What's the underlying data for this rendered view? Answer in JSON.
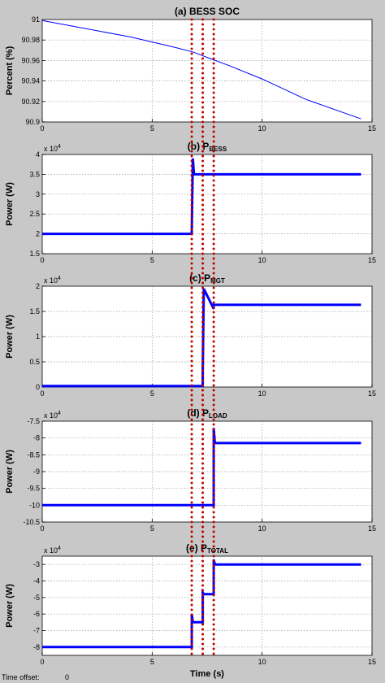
{
  "footer": {
    "time_offset_label": "Time offset:",
    "time_offset_value": "0"
  },
  "chart_data": [
    {
      "type": "line",
      "title_prefix": "(a) BESS SOC",
      "title_sub": "",
      "ylabel": "Percent (%)",
      "xlabel": "",
      "xlim": [
        0,
        15
      ],
      "ylim": [
        90.9,
        91.0
      ],
      "xticks": [
        "0",
        "5",
        "10",
        "15"
      ],
      "yticks": [
        {
          "v": 90.9,
          "t": "90.9"
        },
        {
          "v": 90.92,
          "t": "90.92"
        },
        {
          "v": 90.94,
          "t": "90.94"
        },
        {
          "v": 90.96,
          "t": "90.96"
        },
        {
          "v": 90.98,
          "t": "90.98"
        },
        {
          "v": 91.0,
          "t": "91"
        }
      ],
      "exponent": "",
      "grid": true,
      "series": [
        {
          "x": [
            0,
            2,
            4,
            6,
            6.9,
            7.5,
            8.5,
            10,
            12,
            14.5
          ],
          "y": [
            90.999,
            90.991,
            90.983,
            90.973,
            90.968,
            90.963,
            90.955,
            90.942,
            90.922,
            90.903
          ],
          "width": 1
        }
      ]
    },
    {
      "type": "line",
      "title_prefix": "(b) P",
      "title_sub": "BESS",
      "ylabel": "Power (W)",
      "xlabel": "",
      "xlim": [
        0,
        15
      ],
      "ylim": [
        1.5,
        4.0
      ],
      "xticks": [
        "0",
        "5",
        "10",
        "15"
      ],
      "yticks": [
        {
          "v": 1.5,
          "t": "1.5"
        },
        {
          "v": 2.0,
          "t": "2"
        },
        {
          "v": 2.5,
          "t": "2.5"
        },
        {
          "v": 3.0,
          "t": "3"
        },
        {
          "v": 3.5,
          "t": "3.5"
        },
        {
          "v": 4.0,
          "t": "4"
        }
      ],
      "exponent": "4",
      "grid": true,
      "series": [
        {
          "x": [
            0,
            6.8,
            6.8,
            6.85,
            6.9,
            14.5
          ],
          "y": [
            2.0,
            2.0,
            2.05,
            3.9,
            3.5,
            3.5
          ],
          "width": 3
        }
      ]
    },
    {
      "type": "line",
      "title_prefix": "(c) P",
      "title_sub": "MGT",
      "ylabel": "Power (W)",
      "xlabel": "",
      "xlim": [
        0,
        15
      ],
      "ylim": [
        0,
        2.0
      ],
      "xticks": [
        "0",
        "5",
        "10",
        "15"
      ],
      "yticks": [
        {
          "v": 0,
          "t": "0"
        },
        {
          "v": 0.5,
          "t": "0.5"
        },
        {
          "v": 1.0,
          "t": "1"
        },
        {
          "v": 1.5,
          "t": "1.5"
        },
        {
          "v": 2.0,
          "t": "2"
        }
      ],
      "exponent": "4",
      "grid": true,
      "series": [
        {
          "x": [
            0,
            7.3,
            7.3,
            7.35,
            7.8,
            7.8,
            14.5
          ],
          "y": [
            0.02,
            0.02,
            0.3,
            1.95,
            1.55,
            1.63,
            1.63
          ],
          "width": 3
        }
      ]
    },
    {
      "type": "line",
      "title_prefix": "(d) P",
      "title_sub": "LOAD",
      "ylabel": "Power (W)",
      "xlabel": "",
      "xlim": [
        0,
        15
      ],
      "ylim": [
        -10.5,
        -7.5
      ],
      "xticks": [
        "0",
        "5",
        "10",
        "15"
      ],
      "yticks": [
        {
          "v": -10.5,
          "t": "-10.5"
        },
        {
          "v": -10.0,
          "t": "-10"
        },
        {
          "v": -9.5,
          "t": "-9.5"
        },
        {
          "v": -9.0,
          "t": "-9"
        },
        {
          "v": -8.5,
          "t": "-8.5"
        },
        {
          "v": -8.0,
          "t": "-8"
        },
        {
          "v": -7.5,
          "t": "-7.5"
        }
      ],
      "exponent": "4",
      "grid": true,
      "series": [
        {
          "x": [
            0,
            7.8,
            7.8,
            7.85,
            14.5
          ],
          "y": [
            -10.0,
            -10.0,
            -7.7,
            -8.15,
            -8.15
          ],
          "width": 3
        }
      ]
    },
    {
      "type": "line",
      "title_prefix": "(e) P",
      "title_sub": "TOTAL",
      "ylabel": "Power (W)",
      "xlabel": "Time (s)",
      "xlim": [
        0,
        15
      ],
      "ylim": [
        -8.5,
        -2.5
      ],
      "xticks": [
        "0",
        "5",
        "10",
        "15"
      ],
      "yticks": [
        {
          "v": -8.0,
          "t": "-8"
        },
        {
          "v": -7.0,
          "t": "-7"
        },
        {
          "v": -6.0,
          "t": "-6"
        },
        {
          "v": -5.0,
          "t": "-5"
        },
        {
          "v": -4.0,
          "t": "-4"
        },
        {
          "v": -3.0,
          "t": "-3"
        }
      ],
      "exponent": "4",
      "grid": true,
      "series": [
        {
          "x": [
            0,
            6.8,
            6.8,
            6.85,
            7.3,
            7.3,
            7.35,
            7.8,
            7.8,
            7.85,
            14.5
          ],
          "y": [
            -8.0,
            -8.0,
            -6.0,
            -6.5,
            -6.5,
            -4.7,
            -4.8,
            -4.8,
            -2.7,
            -3.0,
            -3.0
          ],
          "width": 3
        }
      ]
    }
  ],
  "event_markers": {
    "times": [
      6.8,
      7.3,
      7.8
    ],
    "color": "#c00000"
  },
  "trace_color": "#0000ff"
}
